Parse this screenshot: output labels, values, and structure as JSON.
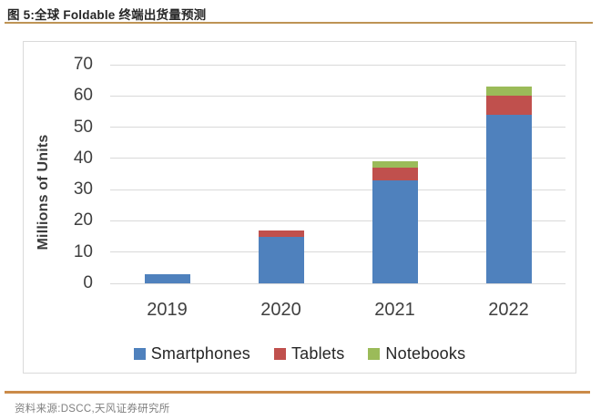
{
  "figure": {
    "title": "图 5:全球 Foldable 终端出货量预测",
    "source": "资料来源:DSCC,天风证券研究所"
  },
  "colors": {
    "top_rule": "#be9455",
    "bottom_rule": "#cb8b49",
    "gridline": "#d9d9d9",
    "chart_border": "#dadada",
    "title_text": "#262626",
    "axis_text": "#3f3f3f",
    "source_text": "#7f7f7f"
  },
  "chart_data": {
    "type": "bar",
    "stacked": true,
    "categories": [
      "2019",
      "2020",
      "2021",
      "2022"
    ],
    "series": [
      {
        "name": "Smartphones",
        "color": "#4f81bd",
        "values": [
          3,
          15,
          33,
          54
        ]
      },
      {
        "name": "Tablets",
        "color": "#c0504d",
        "values": [
          0,
          2,
          4,
          6
        ]
      },
      {
        "name": "Notebooks",
        "color": "#9bbb59",
        "values": [
          0,
          0,
          2,
          3
        ]
      }
    ],
    "totals": [
      3,
      17,
      39,
      63
    ],
    "xlabel": "",
    "ylabel": "Millions of Units",
    "ylim": [
      0,
      70
    ],
    "yticks": [
      0,
      10,
      20,
      30,
      40,
      50,
      60,
      70
    ],
    "grid": true,
    "legend_position": "bottom"
  }
}
